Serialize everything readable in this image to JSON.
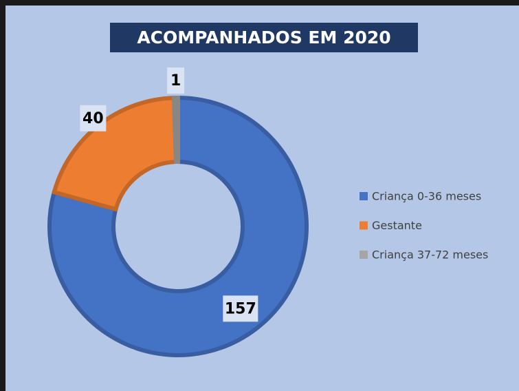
{
  "chart_data": {
    "type": "donut",
    "title": "ACOMPANHADOS EM 2020",
    "categories": [
      "Criança 0-36 meses",
      "Gestante",
      "Criança 37-72 meses"
    ],
    "values": [
      157,
      40,
      1
    ],
    "colors": [
      "#4472c4",
      "#ed7d31",
      "#a5a5a5"
    ],
    "legend": "right"
  }
}
